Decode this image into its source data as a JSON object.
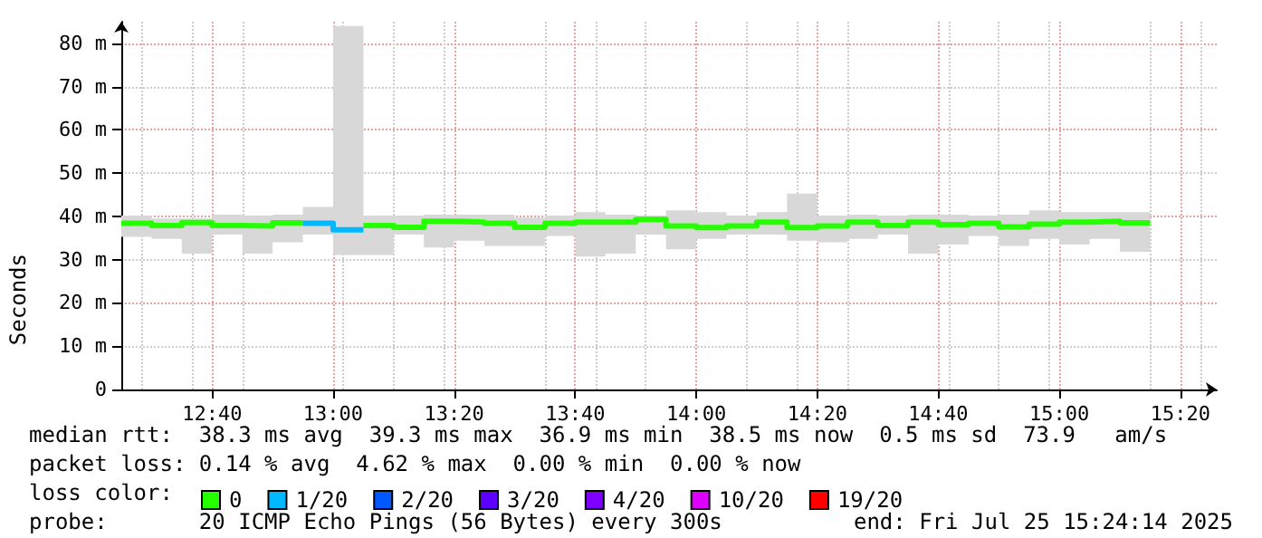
{
  "chart_data": {
    "type": "step",
    "ylabel": "Seconds",
    "legend_title": "loss color:",
    "legend": "bottom",
    "grid": true,
    "marker": "none",
    "line_style": "solid",
    "annotations": [
      "median rtt:  38.3 ms avg  39.3 ms max  36.9 ms min  38.5 ms now  0.5 ms sd  73.9   am/s",
      "packet loss: 0.14 % avg  4.62 % max  0.00 % min  0.00 % now",
      "probe:       20 ICMP Echo Pings (56 Bytes) every 300s",
      "end: Fri Jul 25 15:24:14 2025"
    ],
    "x": [
      "2025-07-25T12:25",
      "2025-07-25T12:30",
      "2025-07-25T12:35",
      "2025-07-25T12:40",
      "2025-07-25T12:45",
      "2025-07-25T12:50",
      "2025-07-25T12:55",
      "2025-07-25T13:00",
      "2025-07-25T13:05",
      "2025-07-25T13:10",
      "2025-07-25T13:15",
      "2025-07-25T13:20",
      "2025-07-25T13:25",
      "2025-07-25T13:30",
      "2025-07-25T13:35",
      "2025-07-25T13:40",
      "2025-07-25T13:45",
      "2025-07-25T13:50",
      "2025-07-25T13:55",
      "2025-07-25T14:00",
      "2025-07-25T14:05",
      "2025-07-25T14:10",
      "2025-07-25T14:15",
      "2025-07-25T14:20",
      "2025-07-25T14:25",
      "2025-07-25T14:30",
      "2025-07-25T14:35",
      "2025-07-25T14:40",
      "2025-07-25T14:45",
      "2025-07-25T14:50",
      "2025-07-25T14:55",
      "2025-07-25T15:00",
      "2025-07-25T15:05",
      "2025-07-25T15:10",
      "2025-07-25T15:15"
    ],
    "xlim": [
      "2025-07-25T12:25",
      "2025-07-25T15:26"
    ],
    "xticks": [
      {
        "value": "2025-07-25T12:40",
        "label": "12:40"
      },
      {
        "value": "2025-07-25T13:00",
        "label": "13:00"
      },
      {
        "value": "2025-07-25T13:20",
        "label": "13:20"
      },
      {
        "value": "2025-07-25T13:40",
        "label": "13:40"
      },
      {
        "value": "2025-07-25T14:00",
        "label": "14:00"
      },
      {
        "value": "2025-07-25T14:20",
        "label": "14:20"
      },
      {
        "value": "2025-07-25T14:40",
        "label": "14:40"
      },
      {
        "value": "2025-07-25T15:00",
        "label": "15:00"
      },
      {
        "value": "2025-07-25T15:20",
        "label": "15:20"
      }
    ],
    "ylim": [
      0,
      85
    ],
    "yticks": [
      0,
      {
        "value": 10,
        "label": "10 m"
      },
      {
        "value": 20,
        "label": "20 m"
      },
      {
        "value": 30,
        "label": "30 m"
      },
      {
        "value": 40,
        "label": "40 m"
      },
      {
        "value": 50,
        "label": "50 m"
      },
      {
        "value": 60,
        "label": "60 m"
      },
      {
        "value": 70,
        "label": "70 m"
      },
      {
        "value": 80,
        "label": "80 m"
      }
    ],
    "series": [
      {
        "name": "0",
        "color": "#26ff00",
        "values": [
          38.4,
          37.9,
          38.6,
          37.9,
          37.8,
          38.5,
          38.5,
          null,
          37.9,
          37.5,
          38.9,
          38.7,
          38.4,
          37.5,
          38.4,
          38.7,
          38.7,
          39.3,
          37.8,
          37.4,
          37.8,
          38.7,
          37.4,
          37.8,
          38.7,
          37.9,
          38.7,
          38.1,
          38.4,
          37.6,
          38.2,
          38.7,
          38.9,
          38.5,
          38.5
        ],
        "upper": [
          40.2,
          39.5,
          39.5,
          40.4,
          40.2,
          40.4,
          42.2,
          84,
          40.2,
          40.2,
          40.4,
          40.4,
          40.4,
          39.7,
          40.2,
          41,
          40.4,
          40.2,
          41.4,
          41,
          40.2,
          41,
          45.3,
          40.2,
          40.4,
          40.2,
          40.4,
          40.4,
          40.2,
          40.4,
          41.4,
          41,
          41,
          41,
          41
        ],
        "lower": [
          35.3,
          34.8,
          31.4,
          35.8,
          31.4,
          34,
          35.8,
          31.1,
          31.1,
          35.8,
          32.8,
          34.4,
          33.2,
          33.2,
          35.5,
          30.7,
          31.4,
          35.8,
          32.4,
          34.8,
          35.8,
          35.8,
          34.4,
          34,
          34.8,
          35.8,
          31.4,
          33.5,
          35.5,
          33.2,
          34.8,
          33.5,
          34.8,
          31.8,
          31.8
        ]
      },
      {
        "name": "1/20",
        "color": "#00b8ff",
        "values": [
          null,
          null,
          null,
          null,
          null,
          null,
          38.4,
          36.9,
          36.9,
          null,
          null,
          null,
          null,
          null,
          null,
          null,
          null,
          null,
          null,
          null,
          null,
          null,
          null,
          null,
          null,
          null,
          null,
          null,
          null,
          null,
          null,
          null,
          null,
          null,
          null
        ]
      },
      {
        "name": "2/20",
        "color": "#0059ff",
        "values": [
          null,
          null,
          null,
          null,
          null,
          null,
          null,
          null,
          null,
          null,
          null,
          null,
          null,
          null,
          null,
          null,
          null,
          null,
          null,
          null,
          null,
          null,
          null,
          null,
          null,
          null,
          null,
          null,
          null,
          null,
          null,
          null,
          null,
          null,
          null
        ]
      },
      {
        "name": "3/20",
        "color": "#5e00ff",
        "values": [
          null,
          null,
          null,
          null,
          null,
          null,
          null,
          null,
          null,
          null,
          null,
          null,
          null,
          null,
          null,
          null,
          null,
          null,
          null,
          null,
          null,
          null,
          null,
          null,
          null,
          null,
          null,
          null,
          null,
          null,
          null,
          null,
          null,
          null,
          null
        ]
      },
      {
        "name": "4/20",
        "color": "#7e00ff",
        "values": [
          null,
          null,
          null,
          null,
          null,
          null,
          null,
          null,
          null,
          null,
          null,
          null,
          null,
          null,
          null,
          null,
          null,
          null,
          null,
          null,
          null,
          null,
          null,
          null,
          null,
          null,
          null,
          null,
          null,
          null,
          null,
          null,
          null,
          null,
          null
        ]
      },
      {
        "name": "10/20",
        "color": "#dd00ff",
        "values": [
          null,
          null,
          null,
          null,
          null,
          null,
          null,
          null,
          null,
          null,
          null,
          null,
          null,
          null,
          null,
          null,
          null,
          null,
          null,
          null,
          null,
          null,
          null,
          null,
          null,
          null,
          null,
          null,
          null,
          null,
          null,
          null,
          null,
          null,
          null
        ]
      },
      {
        "name": "19/20",
        "color": "#ff0000",
        "values": [
          null,
          null,
          null,
          null,
          null,
          null,
          null,
          null,
          null,
          null,
          null,
          null,
          null,
          null,
          null,
          null,
          null,
          null,
          null,
          null,
          null,
          null,
          null,
          null,
          null,
          null,
          null,
          null,
          null,
          null,
          null,
          null,
          null,
          null,
          null
        ]
      }
    ]
  }
}
